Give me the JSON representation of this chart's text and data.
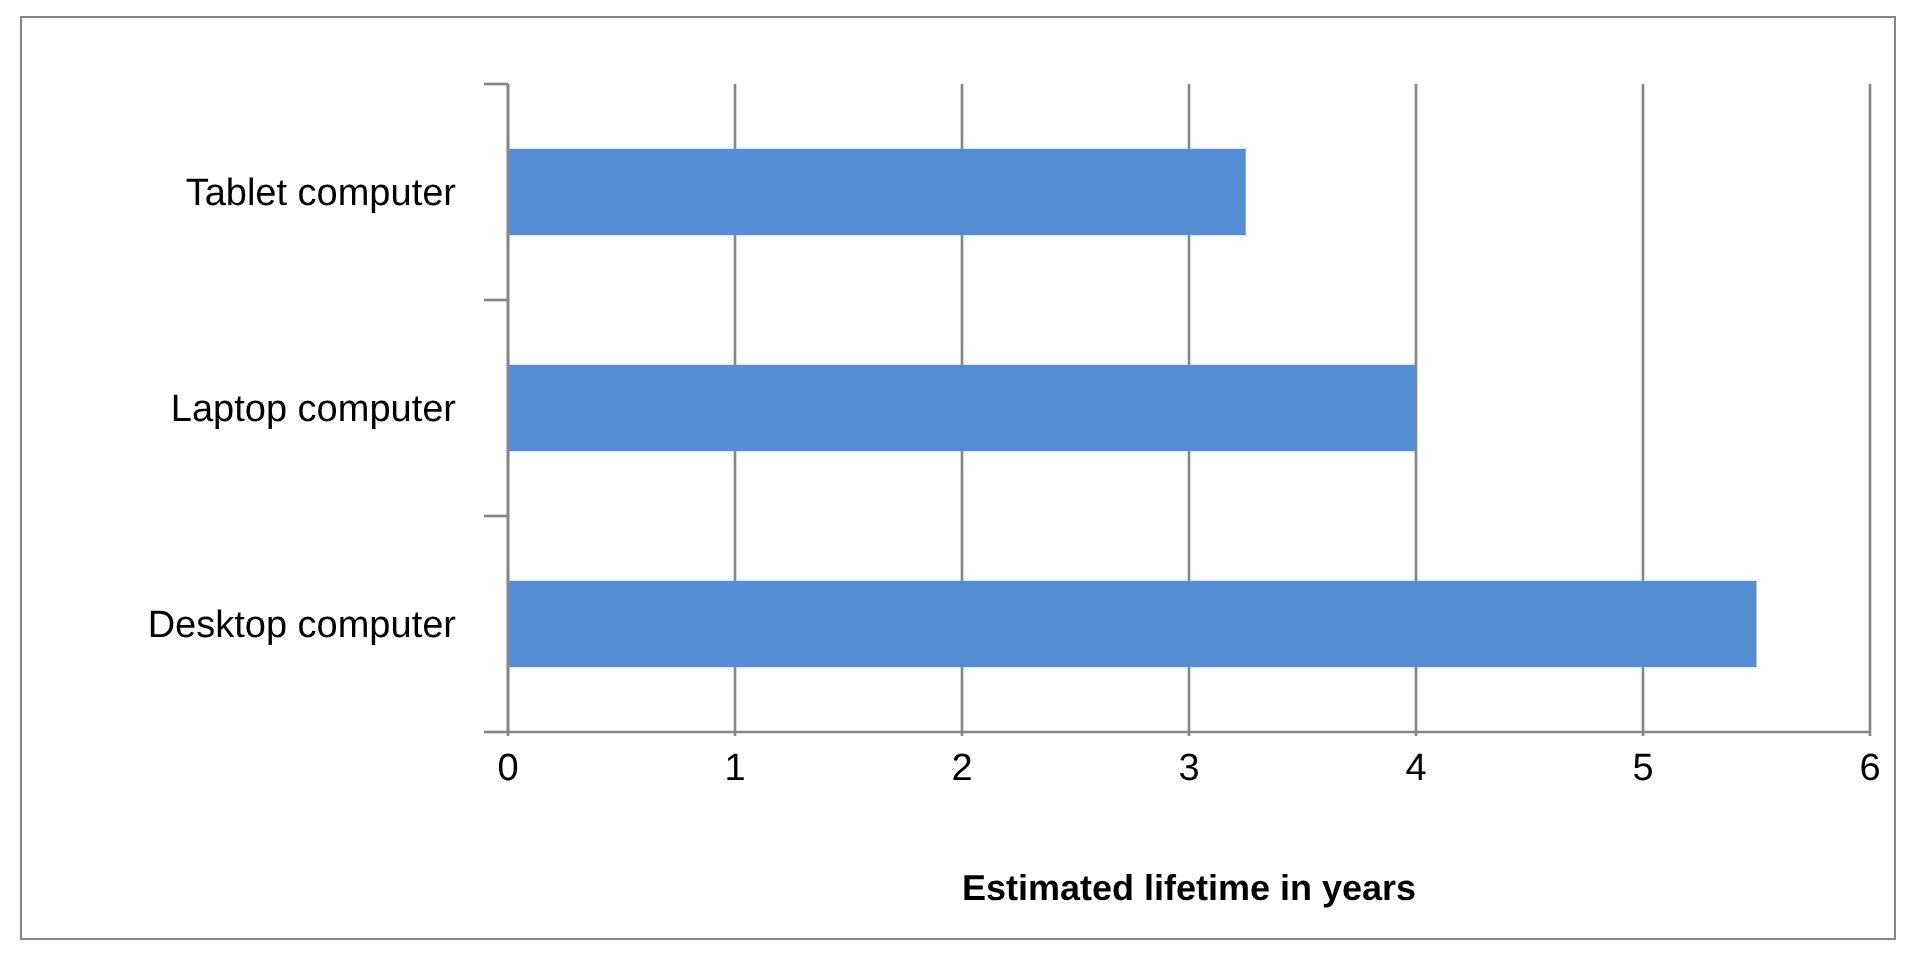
{
  "chart_data": {
    "type": "bar",
    "orientation": "horizontal",
    "categories": [
      "Tablet computer",
      "Laptop computer",
      "Desktop computer"
    ],
    "values": [
      3.25,
      4,
      5.5
    ],
    "color": "#558ed5",
    "xlabel": "Estimated lifetime in years",
    "xlim": [
      0,
      6
    ],
    "xticks": [
      0,
      1,
      2,
      3,
      4,
      5,
      6
    ],
    "grid": "x"
  }
}
